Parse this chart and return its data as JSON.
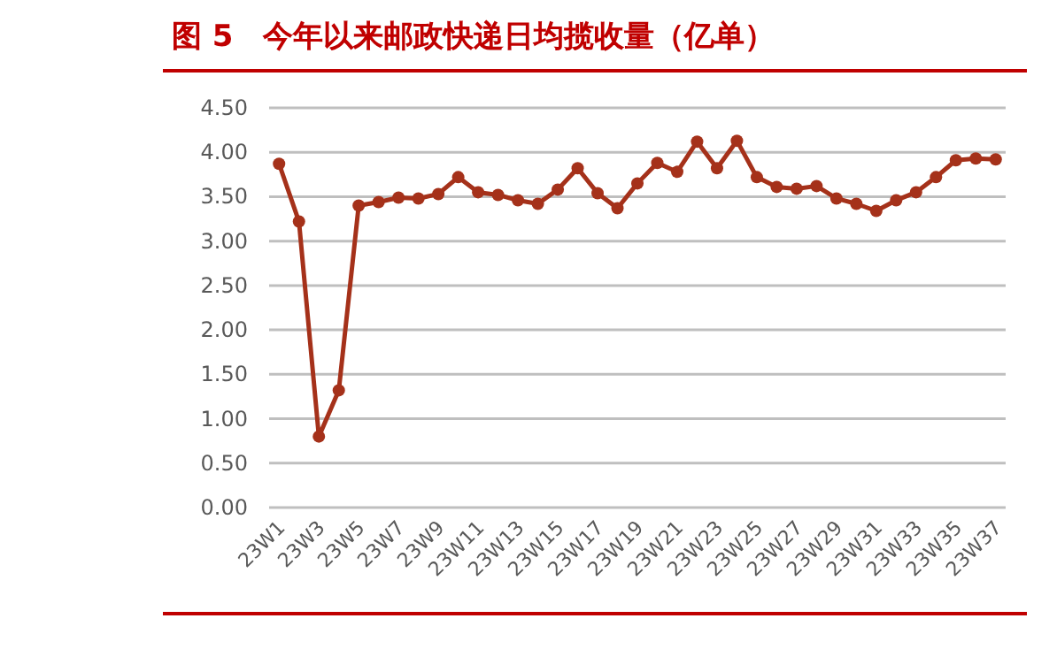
{
  "chart_data": {
    "type": "line",
    "title": "图 5　今年以来邮政快递日均揽收量（亿单）",
    "categories": [
      "23W1",
      null,
      "23W3",
      null,
      "23W5",
      null,
      "23W7",
      null,
      "23W9",
      null,
      "23W11",
      null,
      "23W13",
      null,
      "23W15",
      null,
      "23W17",
      null,
      "23W19",
      null,
      "23W21",
      null,
      "23W23",
      null,
      "23W25",
      null,
      "23W27",
      null,
      "23W29",
      null,
      "23W31",
      null,
      "23W33",
      null,
      "23W35",
      null,
      "23W37"
    ],
    "series": [
      {
        "color": "#a5311a",
        "values": [
          3.87,
          3.22,
          0.8,
          1.32,
          3.4,
          3.44,
          3.49,
          3.48,
          3.53,
          3.72,
          3.55,
          3.52,
          3.46,
          3.42,
          3.58,
          3.82,
          3.54,
          3.37,
          3.65,
          3.88,
          3.78,
          4.12,
          3.82,
          4.13,
          3.72,
          3.61,
          3.59,
          3.62,
          3.48,
          3.42,
          3.34,
          3.46,
          3.55,
          3.72,
          3.91,
          3.93,
          3.92
        ]
      }
    ],
    "ylim": [
      0,
      4.5
    ],
    "yticks": [
      {
        "value": 0,
        "label": "0.00"
      },
      {
        "value": 0.5,
        "label": "0.50"
      },
      {
        "value": 1,
        "label": "1.00"
      },
      {
        "value": 1.5,
        "label": "1.50"
      },
      {
        "value": 2,
        "label": "2.00"
      },
      {
        "value": 2.5,
        "label": "2.50"
      },
      {
        "value": 3,
        "label": "3.00"
      },
      {
        "value": 3.5,
        "label": "3.50"
      },
      {
        "value": 4,
        "label": "4.00"
      },
      {
        "value": 4.5,
        "label": "4.50"
      }
    ],
    "grid": "y",
    "marker": "circle",
    "line_style": "solid"
  }
}
